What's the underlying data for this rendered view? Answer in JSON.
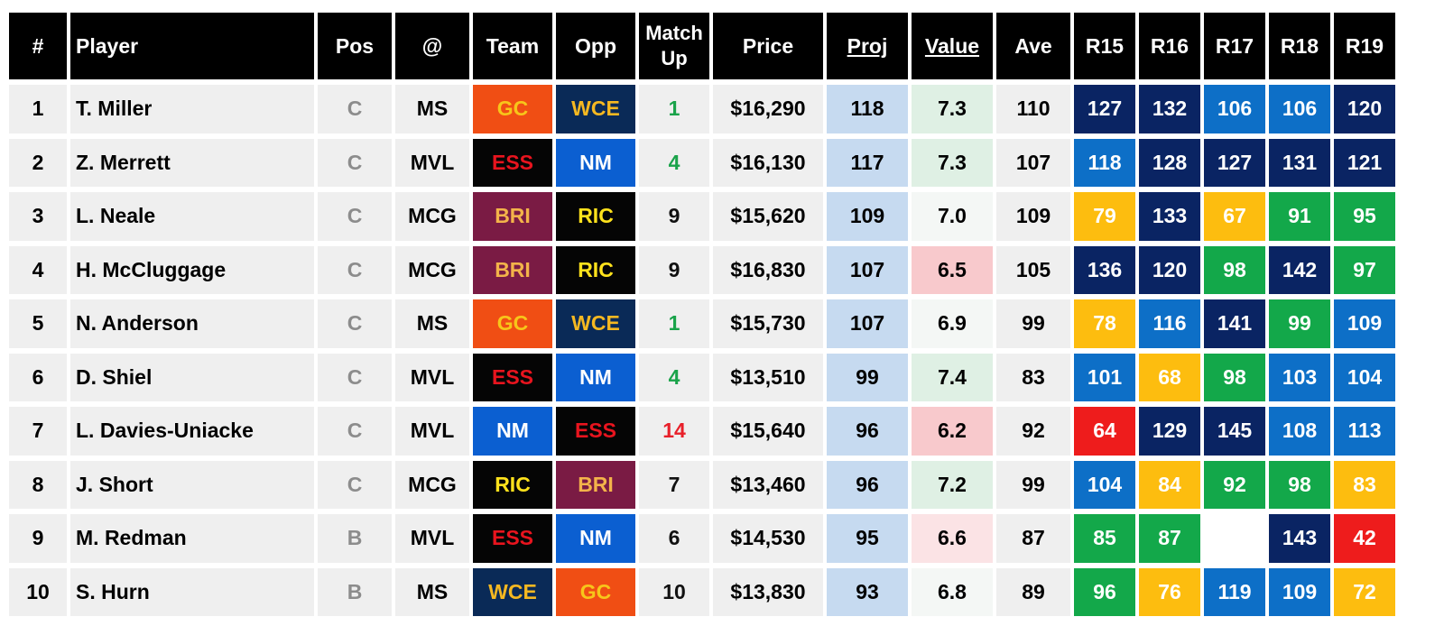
{
  "headers": {
    "rank": "#",
    "player": "Player",
    "pos": "Pos",
    "venue": "@",
    "team": "Team",
    "opp": "Opp",
    "matchup_line1": "Match",
    "matchup_line2": "Up",
    "price": "Price",
    "proj": "Proj",
    "value": "Value",
    "ave": "Ave",
    "rounds": [
      "R15",
      "R16",
      "R17",
      "R18",
      "R19"
    ]
  },
  "colors": {
    "header_bg": "#000000",
    "cell_bg": "#efefef",
    "proj_bg": "#c6daf0",
    "matchup_good": "#1aa34a",
    "matchup_bad": "#e8202a",
    "matchup_neutral": "#111111",
    "value_high": "#dff0e4",
    "value_mid": "#f4f7f5",
    "value_low": "#f8c9cc",
    "value_lowmid": "#fbe3e5",
    "round_elite": "#0a2463",
    "round_high": "#0d6fc7",
    "round_good": "#13a84a",
    "round_avg": "#fdbd0f",
    "round_poor": "#ee1c1c"
  },
  "teams": {
    "GC": {
      "bg": "#f04e14",
      "fg": "#f7c61a"
    },
    "WCE": {
      "bg": "#0a2a57",
      "fg": "#f5b821"
    },
    "ESS": {
      "bg": "#050505",
      "fg": "#e8141e"
    },
    "NM": {
      "bg": "#0b5fd1",
      "fg": "#ffffff"
    },
    "BRI": {
      "bg": "#7a1b44",
      "fg": "#f3b34a"
    },
    "RIC": {
      "bg": "#050505",
      "fg": "#ffe21c"
    }
  },
  "rows": [
    {
      "rank": "1",
      "player": "T. Miller",
      "pos": "C",
      "venue": "MS",
      "team": "GC",
      "opp": "WCE",
      "matchup": "1",
      "matchup_tone": "good",
      "price": "$16,290",
      "proj": "118",
      "value": "7.3",
      "value_tone": "high",
      "ave": "110",
      "rounds": [
        {
          "v": "127",
          "tone": "elite"
        },
        {
          "v": "132",
          "tone": "elite"
        },
        {
          "v": "106",
          "tone": "high"
        },
        {
          "v": "106",
          "tone": "high"
        },
        {
          "v": "120",
          "tone": "elite"
        }
      ]
    },
    {
      "rank": "2",
      "player": "Z. Merrett",
      "pos": "C",
      "venue": "MVL",
      "team": "ESS",
      "opp": "NM",
      "matchup": "4",
      "matchup_tone": "good",
      "price": "$16,130",
      "proj": "117",
      "value": "7.3",
      "value_tone": "high",
      "ave": "107",
      "rounds": [
        {
          "v": "118",
          "tone": "high"
        },
        {
          "v": "128",
          "tone": "elite"
        },
        {
          "v": "127",
          "tone": "elite"
        },
        {
          "v": "131",
          "tone": "elite"
        },
        {
          "v": "121",
          "tone": "elite"
        }
      ]
    },
    {
      "rank": "3",
      "player": "L. Neale",
      "pos": "C",
      "venue": "MCG",
      "team": "BRI",
      "opp": "RIC",
      "matchup": "9",
      "matchup_tone": "neutral",
      "price": "$15,620",
      "proj": "109",
      "value": "7.0",
      "value_tone": "mid",
      "ave": "109",
      "rounds": [
        {
          "v": "79",
          "tone": "avg"
        },
        {
          "v": "133",
          "tone": "elite"
        },
        {
          "v": "67",
          "tone": "avg"
        },
        {
          "v": "91",
          "tone": "good"
        },
        {
          "v": "95",
          "tone": "good"
        }
      ]
    },
    {
      "rank": "4",
      "player": "H. McCluggage",
      "pos": "C",
      "venue": "MCG",
      "team": "BRI",
      "opp": "RIC",
      "matchup": "9",
      "matchup_tone": "neutral",
      "price": "$16,830",
      "proj": "107",
      "value": "6.5",
      "value_tone": "low",
      "ave": "105",
      "rounds": [
        {
          "v": "136",
          "tone": "elite"
        },
        {
          "v": "120",
          "tone": "elite"
        },
        {
          "v": "98",
          "tone": "good"
        },
        {
          "v": "142",
          "tone": "elite"
        },
        {
          "v": "97",
          "tone": "good"
        }
      ]
    },
    {
      "rank": "5",
      "player": "N. Anderson",
      "pos": "C",
      "venue": "MS",
      "team": "GC",
      "opp": "WCE",
      "matchup": "1",
      "matchup_tone": "good",
      "price": "$15,730",
      "proj": "107",
      "value": "6.9",
      "value_tone": "mid",
      "ave": "99",
      "rounds": [
        {
          "v": "78",
          "tone": "avg"
        },
        {
          "v": "116",
          "tone": "high"
        },
        {
          "v": "141",
          "tone": "elite"
        },
        {
          "v": "99",
          "tone": "good"
        },
        {
          "v": "109",
          "tone": "high"
        }
      ]
    },
    {
      "rank": "6",
      "player": "D. Shiel",
      "pos": "C",
      "venue": "MVL",
      "team": "ESS",
      "opp": "NM",
      "matchup": "4",
      "matchup_tone": "good",
      "price": "$13,510",
      "proj": "99",
      "value": "7.4",
      "value_tone": "high",
      "ave": "83",
      "rounds": [
        {
          "v": "101",
          "tone": "high"
        },
        {
          "v": "68",
          "tone": "avg"
        },
        {
          "v": "98",
          "tone": "good"
        },
        {
          "v": "103",
          "tone": "high"
        },
        {
          "v": "104",
          "tone": "high"
        }
      ]
    },
    {
      "rank": "7",
      "player": "L. Davies-Uniacke",
      "pos": "C",
      "venue": "MVL",
      "team": "NM",
      "opp": "ESS",
      "matchup": "14",
      "matchup_tone": "bad",
      "price": "$15,640",
      "proj": "96",
      "value": "6.2",
      "value_tone": "low",
      "ave": "92",
      "rounds": [
        {
          "v": "64",
          "tone": "poor"
        },
        {
          "v": "129",
          "tone": "elite"
        },
        {
          "v": "145",
          "tone": "elite"
        },
        {
          "v": "108",
          "tone": "high"
        },
        {
          "v": "113",
          "tone": "high"
        }
      ]
    },
    {
      "rank": "8",
      "player": "J. Short",
      "pos": "C",
      "venue": "MCG",
      "team": "RIC",
      "opp": "BRI",
      "matchup": "7",
      "matchup_tone": "neutral",
      "price": "$13,460",
      "proj": "96",
      "value": "7.2",
      "value_tone": "high",
      "ave": "99",
      "rounds": [
        {
          "v": "104",
          "tone": "high"
        },
        {
          "v": "84",
          "tone": "avg"
        },
        {
          "v": "92",
          "tone": "good"
        },
        {
          "v": "98",
          "tone": "good"
        },
        {
          "v": "83",
          "tone": "avg"
        }
      ]
    },
    {
      "rank": "9",
      "player": "M. Redman",
      "pos": "B",
      "venue": "MVL",
      "team": "ESS",
      "opp": "NM",
      "matchup": "6",
      "matchup_tone": "neutral",
      "price": "$14,530",
      "proj": "95",
      "value": "6.6",
      "value_tone": "lowmid",
      "ave": "87",
      "rounds": [
        {
          "v": "85",
          "tone": "good"
        },
        {
          "v": "87",
          "tone": "good"
        },
        {
          "v": "",
          "tone": "none"
        },
        {
          "v": "143",
          "tone": "elite"
        },
        {
          "v": "42",
          "tone": "poor"
        }
      ]
    },
    {
      "rank": "10",
      "player": "S. Hurn",
      "pos": "B",
      "venue": "MS",
      "team": "WCE",
      "opp": "GC",
      "matchup": "10",
      "matchup_tone": "neutral",
      "price": "$13,830",
      "proj": "93",
      "value": "6.8",
      "value_tone": "mid",
      "ave": "89",
      "rounds": [
        {
          "v": "96",
          "tone": "good"
        },
        {
          "v": "76",
          "tone": "avg"
        },
        {
          "v": "119",
          "tone": "high"
        },
        {
          "v": "109",
          "tone": "high"
        },
        {
          "v": "72",
          "tone": "avg"
        }
      ]
    }
  ]
}
